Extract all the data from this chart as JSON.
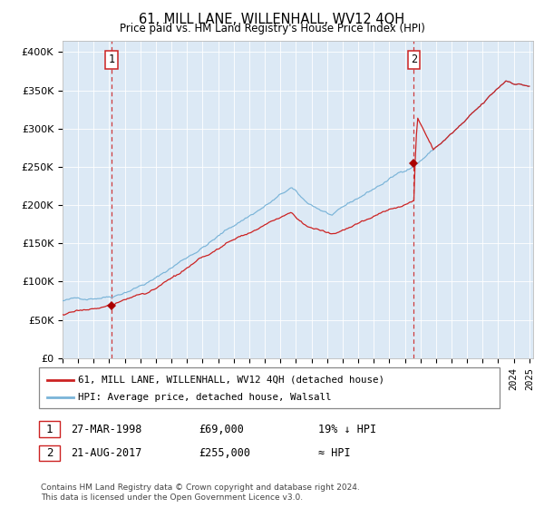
{
  "title": "61, MILL LANE, WILLENHALL, WV12 4QH",
  "subtitle": "Price paid vs. HM Land Registry's House Price Index (HPI)",
  "sale1_date": "27-MAR-1998",
  "sale1_price": 69000,
  "sale1_label": "19% ↓ HPI",
  "sale1_num": "1",
  "sale2_date": "21-AUG-2017",
  "sale2_price": 255000,
  "sale2_label": "≈ HPI",
  "sale2_num": "2",
  "legend1": "61, MILL LANE, WILLENHALL, WV12 4QH (detached house)",
  "legend2": "HPI: Average price, detached house, Walsall",
  "footnote": "Contains HM Land Registry data © Crown copyright and database right 2024.\nThis data is licensed under the Open Government Licence v3.0.",
  "hpi_line_color": "#7ab4d8",
  "price_line_color": "#cc2222",
  "sale_dot_color": "#aa0000",
  "vline_color": "#cc2222",
  "bg_color": "#dce9f5",
  "ylim": [
    0,
    410000
  ],
  "yticks": [
    0,
    50000,
    100000,
    150000,
    200000,
    250000,
    300000,
    350000,
    400000
  ],
  "ytick_labels": [
    "£0",
    "£50K",
    "£100K",
    "£150K",
    "£200K",
    "£250K",
    "£300K",
    "£350K",
    "£400K"
  ]
}
